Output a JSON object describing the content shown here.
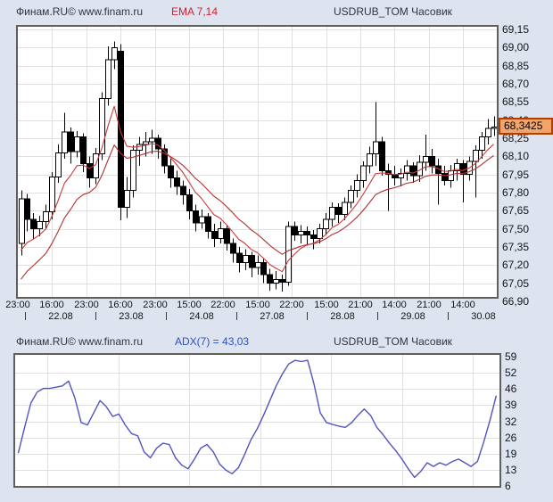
{
  "colors": {
    "background": "#dde4ef",
    "plot_bg": "#ffffff",
    "grid": "#e0e0e0",
    "frame": "#5f5f5c",
    "candle_stroke": "#000000",
    "candle_up_fill": "#ffffff",
    "candle_down_fill": "#000000",
    "ema7": "#c83a3a",
    "ema14": "#b23030",
    "adx_line": "#5153c0",
    "header_text": "#333345",
    "ema_text": "#cc2233",
    "adx_text": "#2b50cc",
    "axis_text": "#15151a",
    "last_price_bg": "#f3a469",
    "last_price_border": "#b13f00"
  },
  "price_chart": {
    "header": {
      "brand": "Финам.RU©",
      "site": "www.finam.ru",
      "indicator": "EMA 7,14",
      "instrument": "USDRUB_TOM Часовик"
    },
    "y_axis_labels": [
      "69,15",
      "69,00",
      "68,85",
      "68,70",
      "68,55",
      "68,40",
      "68,25",
      "68,10",
      "67,95",
      "67,80",
      "67,65",
      "67,50",
      "67,35",
      "67,20",
      "67,05",
      "66,90"
    ],
    "last_price_label": "68,3425",
    "x_axis": {
      "times": [
        "23:00",
        "16:00",
        "23:00",
        "16:00",
        "23:00",
        "15:00",
        "22:00",
        "15:00",
        "22:00",
        "15:00",
        "21:00",
        "14:00",
        "21:00",
        "14:00"
      ],
      "dates": [
        "22.08",
        "23.08",
        "24.08",
        "27.08",
        "28.08",
        "29.08",
        "30.08"
      ]
    }
  },
  "adx_chart": {
    "header": {
      "brand": "Финам.RU©",
      "site": "www.finam.ru",
      "indicator": "ADX(7) = 43,03",
      "instrument": "USDRUB_TOM Часовик"
    },
    "y_axis_labels": [
      "59",
      "52",
      "46",
      "39",
      "32",
      "26",
      "19",
      "13",
      "6"
    ]
  },
  "chart_data": [
    {
      "type": "candlestick",
      "title": "USDRUB_TOM Часовик",
      "period": "hourly",
      "ylim": [
        66.9,
        69.15
      ],
      "y_tick_step": 0.15,
      "x_tick_times": [
        "23:00",
        "16:00",
        "23:00",
        "16:00",
        "23:00",
        "15:00",
        "22:00",
        "15:00",
        "22:00",
        "15:00",
        "21:00",
        "14:00",
        "21:00",
        "14:00"
      ],
      "x_dates": [
        "22.08",
        "23.08",
        "24.08",
        "27.08",
        "28.08",
        "29.08",
        "30.08"
      ],
      "last_price": 68.3425,
      "grid": true,
      "series": [
        {
          "name": "USDRUB_TOM OHLC",
          "ohlc": [
            [
              67.38,
              67.82,
              67.28,
              67.75
            ],
            [
              67.75,
              67.79,
              67.48,
              67.58
            ],
            [
              67.58,
              67.63,
              67.42,
              67.5
            ],
            [
              67.5,
              67.61,
              67.44,
              67.56
            ],
            [
              67.56,
              67.7,
              67.5,
              67.64
            ],
            [
              67.64,
              67.97,
              67.58,
              67.93
            ],
            [
              67.93,
              68.2,
              67.88,
              68.13
            ],
            [
              68.13,
              68.46,
              68.08,
              68.3
            ],
            [
              68.3,
              68.34,
              68.04,
              68.14
            ],
            [
              68.14,
              68.31,
              68.09,
              68.26
            ],
            [
              68.26,
              68.29,
              67.97,
              68.04
            ],
            [
              68.04,
              68.1,
              67.84,
              67.92
            ],
            [
              67.92,
              68.17,
              67.87,
              68.12
            ],
            [
              68.12,
              68.63,
              68.07,
              68.58
            ],
            [
              68.58,
              69.01,
              68.52,
              68.9
            ],
            [
              68.9,
              69.05,
              68.82,
              69.0
            ],
            [
              68.97,
              69.03,
              67.57,
              67.68
            ],
            [
              67.68,
              67.93,
              67.59,
              67.82
            ],
            [
              67.82,
              68.19,
              67.76,
              68.15
            ],
            [
              68.15,
              68.26,
              68.02,
              68.2
            ],
            [
              68.2,
              68.3,
              68.1,
              68.22
            ],
            [
              68.22,
              68.32,
              68.12,
              68.25
            ],
            [
              68.25,
              68.28,
              68.08,
              68.16
            ],
            [
              68.16,
              68.2,
              67.96,
              68.02
            ],
            [
              68.02,
              68.08,
              67.84,
              67.92
            ],
            [
              67.92,
              67.98,
              67.78,
              67.85
            ],
            [
              67.85,
              67.9,
              67.7,
              67.78
            ],
            [
              67.78,
              67.83,
              67.58,
              67.65
            ],
            [
              67.65,
              67.7,
              67.48,
              67.55
            ],
            [
              67.55,
              67.66,
              67.5,
              67.6
            ],
            [
              67.6,
              67.63,
              67.42,
              67.48
            ],
            [
              67.48,
              67.54,
              67.35,
              67.42
            ],
            [
              67.42,
              67.56,
              67.38,
              67.5
            ],
            [
              67.5,
              67.53,
              67.32,
              67.38
            ],
            [
              67.38,
              67.42,
              67.22,
              67.3
            ],
            [
              67.3,
              67.35,
              67.14,
              67.22
            ],
            [
              67.22,
              67.33,
              67.16,
              67.28
            ],
            [
              67.28,
              67.31,
              67.1,
              67.18
            ],
            [
              67.18,
              67.28,
              67.12,
              67.22
            ],
            [
              67.22,
              67.25,
              67.05,
              67.12
            ],
            [
              67.12,
              67.17,
              66.99,
              67.05
            ],
            [
              67.05,
              67.15,
              67.0,
              67.08
            ],
            [
              67.08,
              67.12,
              66.98,
              67.06
            ],
            [
              67.06,
              67.56,
              67.03,
              67.52
            ],
            [
              67.52,
              67.56,
              67.4,
              67.45
            ],
            [
              67.45,
              67.53,
              67.38,
              67.48
            ],
            [
              67.48,
              67.52,
              67.36,
              67.45
            ],
            [
              67.45,
              67.49,
              67.33,
              67.42
            ],
            [
              67.42,
              67.54,
              67.38,
              67.5
            ],
            [
              67.5,
              67.63,
              67.45,
              67.58
            ],
            [
              67.58,
              67.72,
              67.52,
              67.68
            ],
            [
              67.68,
              67.71,
              67.55,
              67.62
            ],
            [
              67.62,
              67.76,
              67.57,
              67.72
            ],
            [
              67.72,
              67.86,
              67.67,
              67.82
            ],
            [
              67.82,
              67.95,
              67.76,
              67.9
            ],
            [
              67.9,
              68.06,
              67.84,
              68.02
            ],
            [
              68.02,
              68.18,
              67.96,
              68.12
            ],
            [
              68.12,
              68.55,
              68.02,
              68.22
            ],
            [
              68.22,
              68.26,
              67.94,
              67.98
            ],
            [
              67.98,
              68.04,
              67.65,
              67.95
            ],
            [
              67.95,
              68.02,
              67.86,
              67.92
            ],
            [
              67.92,
              68.0,
              67.85,
              67.96
            ],
            [
              67.96,
              68.07,
              67.9,
              68.02
            ],
            [
              68.02,
              68.05,
              67.88,
              67.94
            ],
            [
              67.94,
              68.11,
              67.89,
              68.05
            ],
            [
              68.05,
              68.28,
              67.98,
              68.1
            ],
            [
              68.1,
              68.16,
              67.96,
              68.02
            ],
            [
              68.02,
              68.08,
              67.7,
              67.96
            ],
            [
              67.96,
              68.02,
              67.86,
              67.9
            ],
            [
              67.9,
              68.03,
              67.84,
              67.98
            ],
            [
              67.98,
              68.08,
              67.9,
              68.04
            ],
            [
              68.04,
              68.07,
              67.72,
              67.95
            ],
            [
              67.95,
              68.1,
              67.9,
              68.06
            ],
            [
              68.06,
              68.19,
              67.76,
              68.15
            ],
            [
              68.15,
              68.3,
              68.08,
              68.26
            ],
            [
              68.26,
              68.41,
              68.2,
              68.33
            ],
            [
              68.33,
              68.43,
              68.27,
              68.3425
            ]
          ]
        },
        {
          "name": "EMA 7",
          "type": "ema",
          "period": 7,
          "start_value": 67.18,
          "color": "#c83a3a"
        },
        {
          "name": "EMA 14",
          "type": "ema",
          "period": 14,
          "start_value": 66.98,
          "color": "#b23030"
        }
      ]
    },
    {
      "type": "line",
      "name": "ADX(7)",
      "current_value": 43.03,
      "ylim": [
        6,
        59
      ],
      "y_ticks": [
        59,
        52,
        46,
        39,
        32,
        26,
        19,
        13,
        6
      ],
      "color": "#5153c0",
      "grid": true,
      "values": [
        19.5,
        30,
        40,
        44.5,
        46,
        46,
        46.5,
        47,
        49,
        42,
        32,
        31,
        36,
        41,
        38.5,
        34.5,
        35.5,
        31,
        27.5,
        26.5,
        20,
        17.5,
        21.5,
        23.5,
        23,
        17.5,
        14.5,
        13,
        17,
        21.5,
        23,
        20,
        15,
        12.5,
        11,
        13.5,
        19,
        25,
        29.5,
        35,
        41,
        47,
        52,
        56,
        57.5,
        57,
        57.5,
        48,
        36,
        32,
        31.2,
        30.5,
        30,
        32,
        35,
        37.5,
        35,
        30,
        27,
        23.5,
        20.5,
        17,
        13,
        9.5,
        12,
        15.5,
        14,
        15.5,
        14.5,
        16,
        17,
        15.5,
        14,
        16,
        24,
        33,
        43.03
      ]
    }
  ]
}
